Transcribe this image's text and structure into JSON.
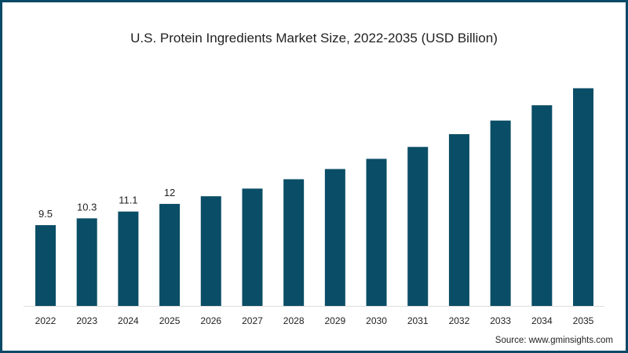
{
  "chart_data": {
    "type": "bar",
    "title": "U.S. Protein Ingredients Market Size, 2022-2035 (USD Billion)",
    "xlabel": "",
    "ylabel": "",
    "categories": [
      "2022",
      "2023",
      "2024",
      "2025",
      "2026",
      "2027",
      "2028",
      "2029",
      "2030",
      "2031",
      "2032",
      "2033",
      "2034",
      "2035"
    ],
    "values": [
      9.5,
      10.3,
      11.1,
      12,
      12.9,
      13.8,
      14.9,
      16.1,
      17.3,
      18.7,
      20.2,
      21.8,
      23.6,
      25.6
    ],
    "data_labels": [
      "9.5",
      "10.3",
      "11.1",
      "12",
      null,
      null,
      null,
      null,
      null,
      null,
      null,
      null,
      null,
      null
    ],
    "ylim": [
      0,
      27
    ],
    "grid": false,
    "bar_color": "#0a4d66",
    "source": "Source: www.gminsights.com"
  }
}
